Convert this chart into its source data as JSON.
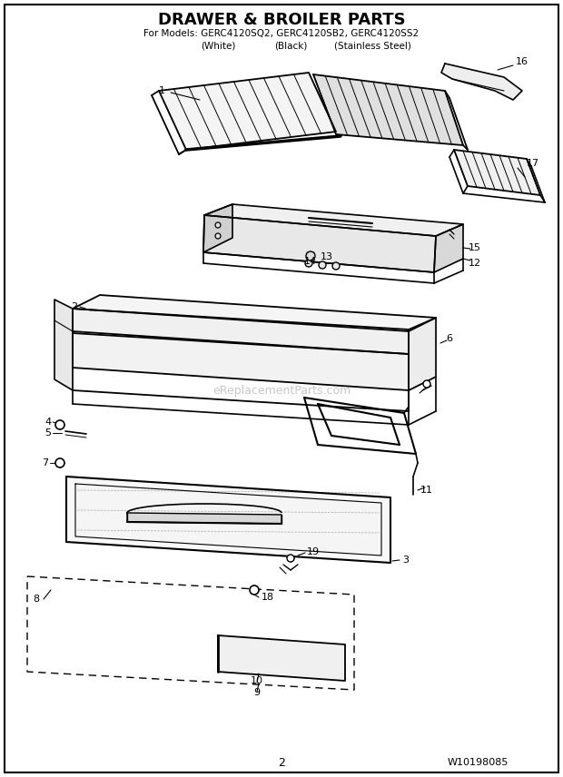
{
  "title_line1": "DRAWER & BROILER PARTS",
  "title_line2": "For Models: GERC4120SQ2, GERC4120SB2, GERC4120SS2",
  "title_line3_a": "(White)",
  "title_line3_b": "(Black)",
  "title_line3_c": "(Stainless Steel)",
  "watermark": "eReplacementParts.com",
  "page_number": "2",
  "part_number": "W10198085",
  "bg_color": "#ffffff",
  "text_color": "#000000",
  "watermark_color": "#c8c8c8",
  "fig_width": 6.2,
  "fig_height": 8.56,
  "dpi": 100
}
